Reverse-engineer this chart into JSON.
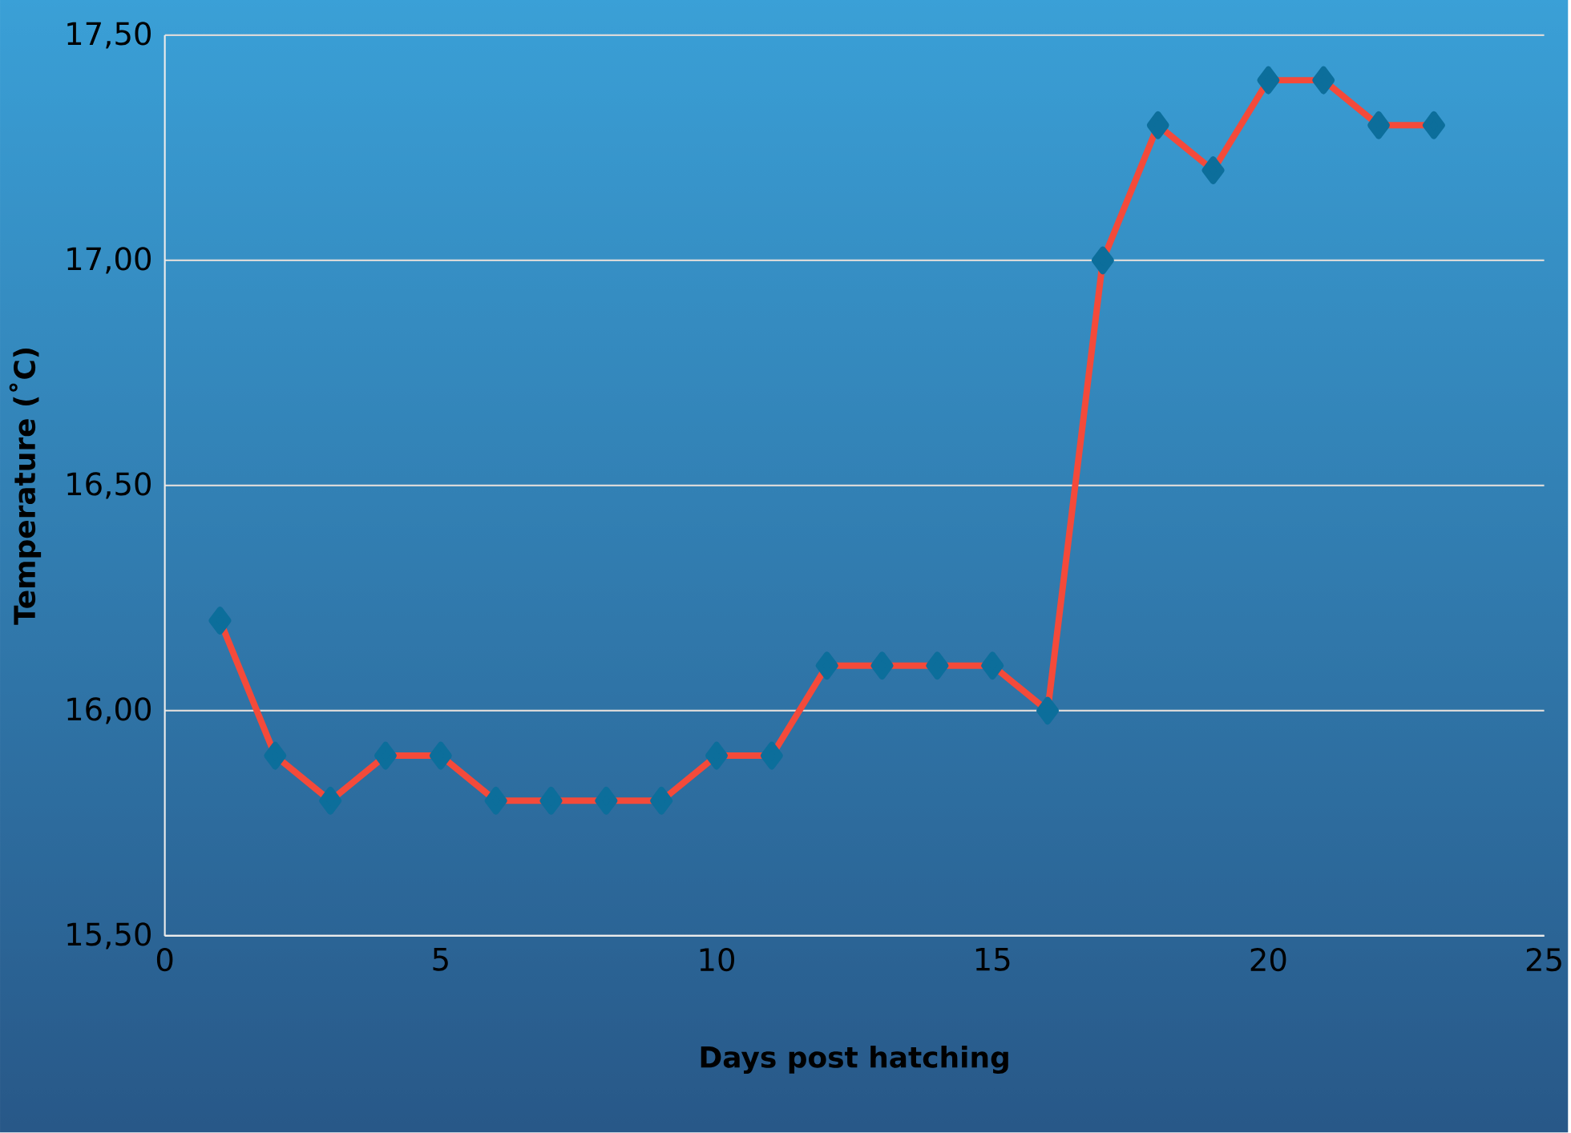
{
  "chart_data": {
    "type": "line",
    "xlabel": "Days post hatching",
    "ylabel": "Temperature (˚C)",
    "x": [
      1,
      2,
      3,
      4,
      5,
      6,
      7,
      8,
      9,
      10,
      11,
      12,
      13,
      14,
      15,
      16,
      17,
      18,
      19,
      20,
      21,
      22,
      23
    ],
    "series": [
      {
        "color": "#f44a3a",
        "values": [
          16.2,
          15.9,
          15.8,
          15.9,
          15.9,
          15.8,
          15.8,
          15.8,
          15.8,
          15.9,
          15.9,
          16.1,
          16.1,
          16.1,
          16.1,
          16.0,
          17.0,
          17.3,
          17.2,
          17.4,
          17.4,
          17.3,
          17.3
        ]
      }
    ],
    "xlim": [
      0,
      25
    ],
    "xticks": [
      0,
      5,
      10,
      15,
      20,
      25
    ],
    "ylim": [
      15.5,
      17.5
    ],
    "yticks": [
      {
        "value": 15.5,
        "label": "15,50"
      },
      {
        "value": 16.0,
        "label": "16,00"
      },
      {
        "value": 16.5,
        "label": "16,50"
      },
      {
        "value": 17.0,
        "label": "17,00"
      },
      {
        "value": 17.5,
        "label": "17,50"
      }
    ],
    "grid": "y",
    "marker": "diamond",
    "line_style": "solid"
  }
}
